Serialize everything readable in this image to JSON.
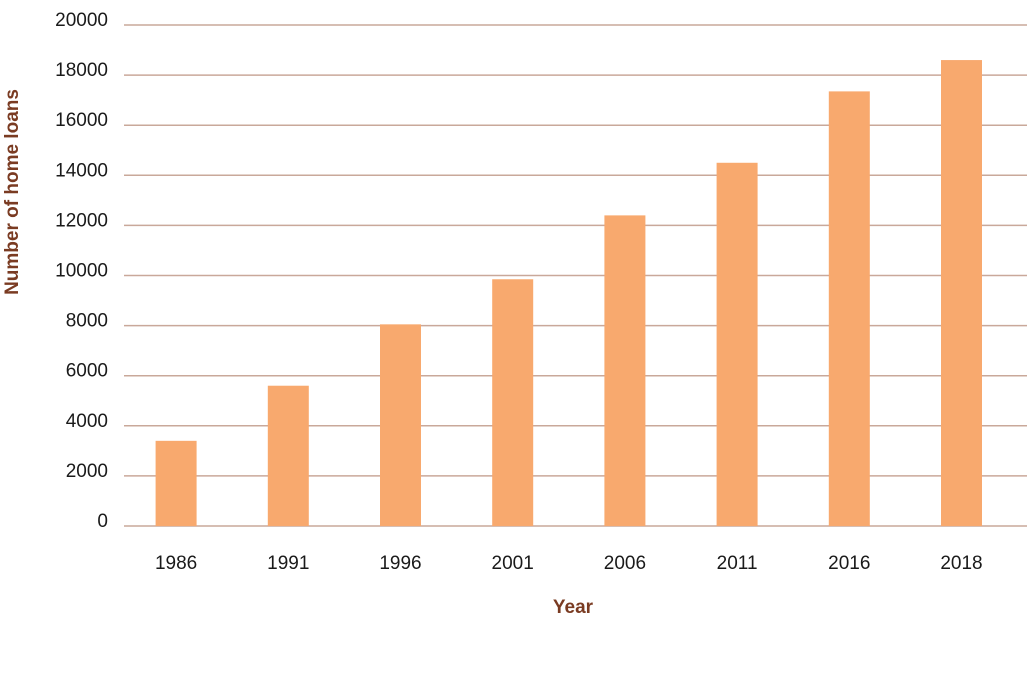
{
  "chart_data": {
    "type": "bar",
    "title": "",
    "xlabel": "Year",
    "ylabel": "Number of home loans",
    "categories": [
      "1986",
      "1991",
      "1996",
      "2001",
      "2006",
      "2011",
      "2016",
      "2018"
    ],
    "values": [
      3400,
      5600,
      8050,
      9850,
      12400,
      14500,
      17350,
      18600
    ],
    "ylim": [
      0,
      20000
    ],
    "yticks": [
      "0",
      "2000",
      "4000",
      "6000",
      "8000",
      "10000",
      "12000",
      "14000",
      "16000",
      "18000",
      "20000"
    ],
    "grid": true,
    "legend": "none"
  },
  "colors": {
    "bar": "#f8a96e",
    "grid": "#c9a89a",
    "axis_title": "#7a3b22",
    "tick_text": "#1a1a1a"
  }
}
